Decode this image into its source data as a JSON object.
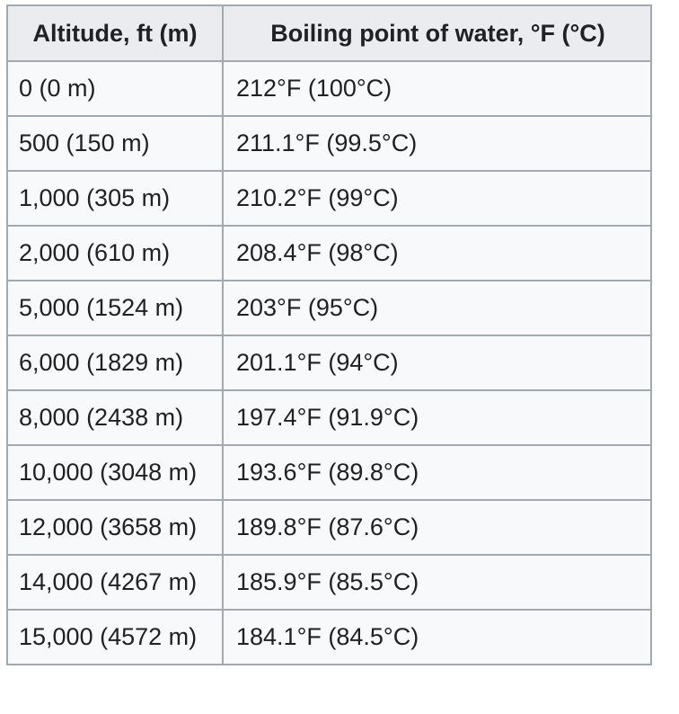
{
  "table": {
    "headers": [
      "Altitude, ft (m)",
      "Boiling point of water, °F (°C)"
    ],
    "rows": [
      [
        "0 (0 m)",
        "212°F (100°C)"
      ],
      [
        "500 (150 m)",
        "211.1°F (99.5°C)"
      ],
      [
        "1,000 (305 m)",
        "210.2°F (99°C)"
      ],
      [
        "2,000 (610 m)",
        "208.4°F (98°C)"
      ],
      [
        "5,000 (1524 m)",
        "203°F (95°C)"
      ],
      [
        "6,000 (1829 m)",
        "201.1°F (94°C)"
      ],
      [
        "8,000 (2438 m)",
        "197.4°F (91.9°C)"
      ],
      [
        "10,000 (3048 m)",
        "193.6°F (89.8°C)"
      ],
      [
        "12,000 (3658 m)",
        "189.8°F (87.6°C)"
      ],
      [
        "14,000 (4267 m)",
        "185.9°F (85.5°C)"
      ],
      [
        "15,000 (4572 m)",
        "184.1°F (84.5°C)"
      ]
    ]
  }
}
